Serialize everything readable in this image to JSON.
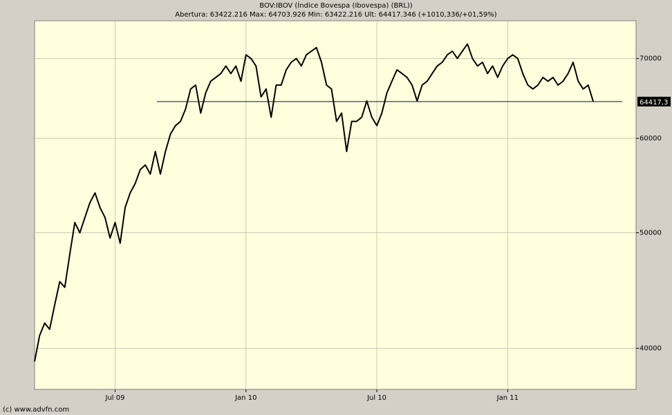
{
  "chart_data": {
    "type": "line",
    "title": "BOV:IBOV (Índice Bovespa (Ibovespa) (BRL))",
    "subtitle": "Abertura: 63422.216 Max: 64703.926 Min: 63422.216 Ult: 64417.346 (+1010,336/+01,59%)",
    "credit": "(c) www.advfn.com",
    "categories": [
      null,
      null,
      null,
      null,
      null,
      null,
      null,
      null,
      null,
      null,
      null,
      null,
      null,
      null,
      null,
      null,
      "Jul 09",
      null,
      null,
      null,
      null,
      null,
      null,
      null,
      null,
      null,
      null,
      null,
      null,
      null,
      null,
      null,
      null,
      null,
      null,
      null,
      null,
      null,
      null,
      null,
      null,
      null,
      "Jan 10",
      null,
      null,
      null,
      null,
      null,
      null,
      null,
      null,
      null,
      null,
      null,
      null,
      null,
      null,
      null,
      null,
      null,
      null,
      null,
      null,
      null,
      null,
      null,
      null,
      null,
      "Jul 10",
      null,
      null,
      null,
      null,
      null,
      null,
      null,
      null,
      null,
      null,
      null,
      null,
      null,
      null,
      null,
      null,
      null,
      null,
      null,
      null,
      null,
      null,
      null,
      null,
      null,
      "Jan 11",
      null,
      null,
      null,
      null,
      null,
      null,
      null,
      null,
      null,
      null,
      null,
      null,
      null,
      null,
      null,
      null,
      null
    ],
    "series": [
      {
        "color": "#000000",
        "values": [
          39000,
          41000,
          42000,
          41500,
          43500,
          45500,
          45000,
          48000,
          51000,
          50000,
          51500,
          53000,
          54000,
          52500,
          51500,
          49500,
          51000,
          49000,
          52500,
          54000,
          55000,
          56500,
          57000,
          56000,
          58500,
          56000,
          58500,
          60500,
          61500,
          62000,
          63500,
          66000,
          66500,
          63000,
          65500,
          67000,
          67500,
          68000,
          69000,
          68000,
          69000,
          67000,
          70500,
          70000,
          69000,
          65000,
          66000,
          62500,
          66500,
          66500,
          68500,
          69500,
          70000,
          69000,
          70500,
          71000,
          71500,
          69500,
          66500,
          66000,
          62000,
          63000,
          58500,
          62000,
          62000,
          62500,
          64500,
          62500,
          61500,
          63000,
          65500,
          67000,
          68500,
          68000,
          67500,
          66500,
          64500,
          66500,
          67000,
          68000,
          69000,
          69500,
          70500,
          71000,
          70000,
          71000,
          72000,
          70000,
          69000,
          69500,
          68000,
          69000,
          67500,
          69000,
          70000,
          70500,
          70000,
          68000,
          66500,
          66000,
          66500,
          67500,
          67000,
          67500,
          66500,
          67000,
          68000,
          69500,
          67000,
          66000,
          66500,
          64417
        ]
      }
    ],
    "last_value": {
      "value": 64417.346,
      "label": "64417,3"
    },
    "last_value_color": "#00008b",
    "ylim": [
      36950,
      75300
    ],
    "yticks": [
      40000,
      50000,
      60000,
      70000
    ],
    "log_scale": true,
    "grid": true
  }
}
